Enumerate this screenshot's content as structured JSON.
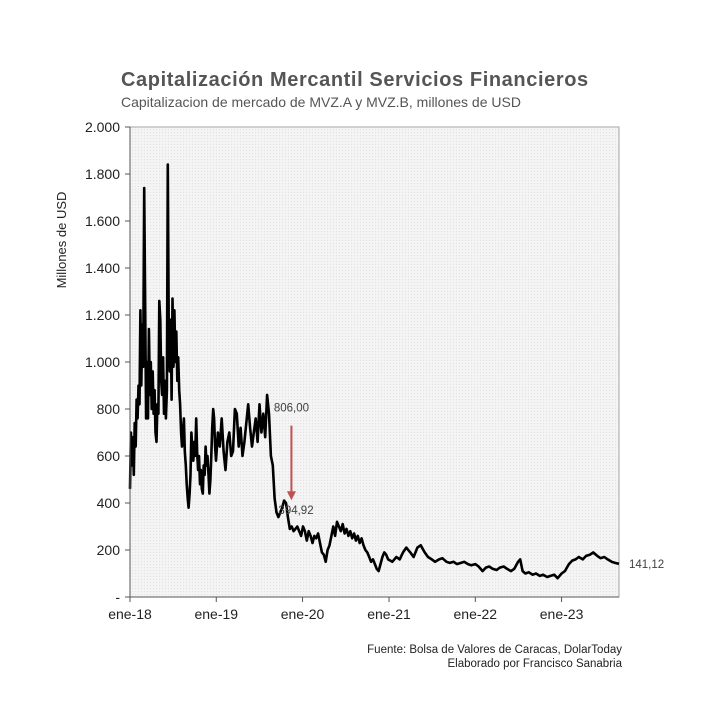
{
  "title": "Capitalización Mercantil Servicios Financieros",
  "subtitle": "Capitalizacion de mercado de MVZ.A  y MVZ.B,  millones de USD",
  "source_lines": [
    "Fuente: Bolsa de Valores de Caracas, DolarToday",
    "Elaborado por Francisco Sanabria"
  ],
  "colors": {
    "line": "#000000",
    "arrow": "#c0504d",
    "plot_bg": "#f2f2f2",
    "grid": "#dcdcdc"
  },
  "chart_data": {
    "type": "line",
    "ylabel": "Millones de USD",
    "xlabel": "",
    "ylim": [
      0,
      2000
    ],
    "xlim": [
      "2018-01-01",
      "2023-09-01"
    ],
    "grid": true,
    "y_ticks": [
      {
        "value": 0,
        "label": "-"
      },
      {
        "value": 200,
        "label": "200"
      },
      {
        "value": 400,
        "label": "400"
      },
      {
        "value": 600,
        "label": "600"
      },
      {
        "value": 800,
        "label": "800"
      },
      {
        "value": 1000,
        "label": "1.000"
      },
      {
        "value": 1200,
        "label": "1.200"
      },
      {
        "value": 1400,
        "label": "1.400"
      },
      {
        "value": 1600,
        "label": "1.600"
      },
      {
        "value": 1800,
        "label": "1.800"
      },
      {
        "value": 2000,
        "label": "2.000"
      }
    ],
    "x_ticks": [
      {
        "value": "2018-01-01",
        "label": "ene-18"
      },
      {
        "value": "2019-01-01",
        "label": "ene-19"
      },
      {
        "value": "2020-01-01",
        "label": "ene-20"
      },
      {
        "value": "2021-01-01",
        "label": "ene-21"
      },
      {
        "value": "2022-01-01",
        "label": "ene-22"
      },
      {
        "value": "2023-01-01",
        "label": "ene-23"
      }
    ],
    "series": [
      {
        "points": [
          [
            "2018-01-01",
            460
          ],
          [
            "2018-01-05",
            700
          ],
          [
            "2018-01-09",
            560
          ],
          [
            "2018-01-13",
            680
          ],
          [
            "2018-01-17",
            520
          ],
          [
            "2018-01-21",
            740
          ],
          [
            "2018-01-25",
            640
          ],
          [
            "2018-01-29",
            840
          ],
          [
            "2018-02-02",
            760
          ],
          [
            "2018-02-06",
            900
          ],
          [
            "2018-02-10",
            820
          ],
          [
            "2018-02-14",
            1220
          ],
          [
            "2018-02-18",
            900
          ],
          [
            "2018-02-22",
            1160
          ],
          [
            "2018-02-26",
            980
          ],
          [
            "2018-03-02",
            1740
          ],
          [
            "2018-03-06",
            1280
          ],
          [
            "2018-03-10",
            760
          ],
          [
            "2018-03-14",
            1000
          ],
          [
            "2018-03-18",
            760
          ],
          [
            "2018-03-22",
            1140
          ],
          [
            "2018-03-26",
            860
          ],
          [
            "2018-03-30",
            1000
          ],
          [
            "2018-04-03",
            800
          ],
          [
            "2018-04-07",
            960
          ],
          [
            "2018-04-11",
            780
          ],
          [
            "2018-04-15",
            880
          ],
          [
            "2018-04-19",
            700
          ],
          [
            "2018-04-23",
            660
          ],
          [
            "2018-04-27",
            820
          ],
          [
            "2018-05-01",
            780
          ],
          [
            "2018-05-05",
            1260
          ],
          [
            "2018-05-09",
            1180
          ],
          [
            "2018-05-13",
            920
          ],
          [
            "2018-05-17",
            860
          ],
          [
            "2018-05-21",
            1020
          ],
          [
            "2018-05-25",
            780
          ],
          [
            "2018-05-29",
            920
          ],
          [
            "2018-06-02",
            760
          ],
          [
            "2018-06-06",
            880
          ],
          [
            "2018-06-10",
            1840
          ],
          [
            "2018-06-14",
            1100
          ],
          [
            "2018-06-18",
            960
          ],
          [
            "2018-06-22",
            1180
          ],
          [
            "2018-06-26",
            840
          ],
          [
            "2018-06-30",
            1270
          ],
          [
            "2018-07-04",
            980
          ],
          [
            "2018-07-08",
            1220
          ],
          [
            "2018-07-12",
            1000
          ],
          [
            "2018-07-16",
            1130
          ],
          [
            "2018-07-20",
            920
          ],
          [
            "2018-07-24",
            1020
          ],
          [
            "2018-07-28",
            880
          ],
          [
            "2018-08-01",
            820
          ],
          [
            "2018-08-05",
            700
          ],
          [
            "2018-08-09",
            640
          ],
          [
            "2018-08-13",
            700
          ],
          [
            "2018-08-17",
            760
          ],
          [
            "2018-08-21",
            620
          ],
          [
            "2018-08-25",
            560
          ],
          [
            "2018-08-29",
            480
          ],
          [
            "2018-09-02",
            420
          ],
          [
            "2018-09-06",
            380
          ],
          [
            "2018-09-10",
            440
          ],
          [
            "2018-09-14",
            520
          ],
          [
            "2018-09-18",
            700
          ],
          [
            "2018-09-22",
            620
          ],
          [
            "2018-09-26",
            580
          ],
          [
            "2018-09-30",
            660
          ],
          [
            "2018-10-04",
            600
          ],
          [
            "2018-10-08",
            760
          ],
          [
            "2018-10-12",
            620
          ],
          [
            "2018-10-16",
            540
          ],
          [
            "2018-10-20",
            600
          ],
          [
            "2018-10-24",
            480
          ],
          [
            "2018-10-28",
            540
          ],
          [
            "2018-11-01",
            460
          ],
          [
            "2018-11-05",
            440
          ],
          [
            "2018-11-09",
            560
          ],
          [
            "2018-11-13",
            520
          ],
          [
            "2018-11-17",
            640
          ],
          [
            "2018-11-21",
            560
          ],
          [
            "2018-11-25",
            600
          ],
          [
            "2018-11-29",
            520
          ],
          [
            "2018-12-03",
            440
          ],
          [
            "2018-12-07",
            500
          ],
          [
            "2018-12-11",
            600
          ],
          [
            "2018-12-15",
            720
          ],
          [
            "2018-12-19",
            800
          ],
          [
            "2018-12-23",
            760
          ],
          [
            "2018-12-27",
            640
          ],
          [
            "2018-12-31",
            580
          ],
          [
            "2019-01-08",
            700
          ],
          [
            "2019-01-16",
            640
          ],
          [
            "2019-01-24",
            760
          ],
          [
            "2019-02-01",
            620
          ],
          [
            "2019-02-09",
            540
          ],
          [
            "2019-02-17",
            660
          ],
          [
            "2019-02-25",
            700
          ],
          [
            "2019-03-05",
            600
          ],
          [
            "2019-03-13",
            620
          ],
          [
            "2019-03-21",
            800
          ],
          [
            "2019-03-29",
            780
          ],
          [
            "2019-04-06",
            640
          ],
          [
            "2019-04-14",
            720
          ],
          [
            "2019-04-22",
            600
          ],
          [
            "2019-04-30",
            660
          ],
          [
            "2019-05-08",
            740
          ],
          [
            "2019-05-16",
            820
          ],
          [
            "2019-05-24",
            720
          ],
          [
            "2019-06-01",
            640
          ],
          [
            "2019-06-09",
            700
          ],
          [
            "2019-06-17",
            760
          ],
          [
            "2019-06-25",
            660
          ],
          [
            "2019-07-03",
            820
          ],
          [
            "2019-07-11",
            700
          ],
          [
            "2019-07-19",
            780
          ],
          [
            "2019-07-27",
            680
          ],
          [
            "2019-08-04",
            860
          ],
          [
            "2019-08-12",
            780
          ],
          [
            "2019-08-20",
            600
          ],
          [
            "2019-08-28",
            560
          ],
          [
            "2019-09-05",
            420
          ],
          [
            "2019-09-13",
            360
          ],
          [
            "2019-09-21",
            340
          ],
          [
            "2019-09-29",
            360
          ],
          [
            "2019-10-07",
            380
          ],
          [
            "2019-10-15",
            410
          ],
          [
            "2019-10-23",
            400
          ],
          [
            "2019-10-31",
            340
          ],
          [
            "2019-11-08",
            290
          ],
          [
            "2019-11-16",
            300
          ],
          [
            "2019-11-24",
            280
          ],
          [
            "2019-12-02",
            290
          ],
          [
            "2019-12-10",
            300
          ],
          [
            "2019-12-18",
            280
          ],
          [
            "2019-12-26",
            260
          ],
          [
            "2020-01-03",
            300
          ],
          [
            "2020-01-11",
            280
          ],
          [
            "2020-01-19",
            240
          ],
          [
            "2020-01-27",
            280
          ],
          [
            "2020-02-04",
            260
          ],
          [
            "2020-02-12",
            230
          ],
          [
            "2020-02-20",
            260
          ],
          [
            "2020-02-28",
            250
          ],
          [
            "2020-03-07",
            270
          ],
          [
            "2020-03-15",
            230
          ],
          [
            "2020-03-23",
            190
          ],
          [
            "2020-03-31",
            180
          ],
          [
            "2020-04-08",
            150
          ],
          [
            "2020-04-16",
            200
          ],
          [
            "2020-04-24",
            220
          ],
          [
            "2020-05-02",
            260
          ],
          [
            "2020-05-10",
            300
          ],
          [
            "2020-05-18",
            260
          ],
          [
            "2020-05-26",
            320
          ],
          [
            "2020-06-03",
            300
          ],
          [
            "2020-06-11",
            280
          ],
          [
            "2020-06-19",
            310
          ],
          [
            "2020-06-27",
            270
          ],
          [
            "2020-07-05",
            290
          ],
          [
            "2020-07-13",
            260
          ],
          [
            "2020-07-21",
            280
          ],
          [
            "2020-07-29",
            250
          ],
          [
            "2020-08-06",
            270
          ],
          [
            "2020-08-14",
            240
          ],
          [
            "2020-08-22",
            260
          ],
          [
            "2020-08-30",
            230
          ],
          [
            "2020-09-07",
            250
          ],
          [
            "2020-09-15",
            220
          ],
          [
            "2020-09-23",
            200
          ],
          [
            "2020-10-01",
            190
          ],
          [
            "2020-10-09",
            170
          ],
          [
            "2020-10-17",
            150
          ],
          [
            "2020-10-25",
            160
          ],
          [
            "2020-11-02",
            140
          ],
          [
            "2020-11-10",
            120
          ],
          [
            "2020-11-18",
            110
          ],
          [
            "2020-11-26",
            140
          ],
          [
            "2020-12-04",
            170
          ],
          [
            "2020-12-12",
            190
          ],
          [
            "2020-12-20",
            180
          ],
          [
            "2020-12-28",
            160
          ],
          [
            "2021-01-15",
            150
          ],
          [
            "2021-02-01",
            170
          ],
          [
            "2021-02-15",
            160
          ],
          [
            "2021-03-01",
            190
          ],
          [
            "2021-03-15",
            210
          ],
          [
            "2021-04-01",
            190
          ],
          [
            "2021-04-15",
            170
          ],
          [
            "2021-05-01",
            210
          ],
          [
            "2021-05-15",
            220
          ],
          [
            "2021-06-01",
            190
          ],
          [
            "2021-06-15",
            170
          ],
          [
            "2021-07-01",
            160
          ],
          [
            "2021-07-15",
            150
          ],
          [
            "2021-08-01",
            160
          ],
          [
            "2021-08-15",
            165
          ],
          [
            "2021-09-01",
            150
          ],
          [
            "2021-09-15",
            145
          ],
          [
            "2021-10-01",
            150
          ],
          [
            "2021-10-15",
            140
          ],
          [
            "2021-11-01",
            145
          ],
          [
            "2021-11-15",
            150
          ],
          [
            "2021-12-01",
            140
          ],
          [
            "2021-12-15",
            135
          ],
          [
            "2022-01-01",
            140
          ],
          [
            "2022-01-15",
            130
          ],
          [
            "2022-02-01",
            110
          ],
          [
            "2022-02-15",
            125
          ],
          [
            "2022-03-01",
            130
          ],
          [
            "2022-03-15",
            120
          ],
          [
            "2022-04-01",
            115
          ],
          [
            "2022-04-15",
            125
          ],
          [
            "2022-05-01",
            130
          ],
          [
            "2022-05-15",
            120
          ],
          [
            "2022-06-01",
            110
          ],
          [
            "2022-06-15",
            120
          ],
          [
            "2022-07-01",
            150
          ],
          [
            "2022-07-10",
            160
          ],
          [
            "2022-07-20",
            110
          ],
          [
            "2022-08-01",
            100
          ],
          [
            "2022-08-15",
            105
          ],
          [
            "2022-09-01",
            95
          ],
          [
            "2022-09-15",
            100
          ],
          [
            "2022-10-01",
            90
          ],
          [
            "2022-10-15",
            95
          ],
          [
            "2022-11-01",
            85
          ],
          [
            "2022-11-15",
            90
          ],
          [
            "2022-12-01",
            95
          ],
          [
            "2022-12-15",
            80
          ],
          [
            "2023-01-01",
            100
          ],
          [
            "2023-01-15",
            110
          ],
          [
            "2023-02-01",
            140
          ],
          [
            "2023-02-15",
            155
          ],
          [
            "2023-03-01",
            160
          ],
          [
            "2023-03-15",
            170
          ],
          [
            "2023-04-01",
            160
          ],
          [
            "2023-04-15",
            175
          ],
          [
            "2023-05-01",
            180
          ],
          [
            "2023-05-15",
            190
          ],
          [
            "2023-06-01",
            175
          ],
          [
            "2023-06-15",
            165
          ],
          [
            "2023-07-01",
            170
          ],
          [
            "2023-07-15",
            160
          ],
          [
            "2023-08-01",
            150
          ],
          [
            "2023-08-15",
            145
          ],
          [
            "2023-09-01",
            141.12
          ]
        ]
      }
    ],
    "annotations": {
      "arrow": {
        "date": "2019-11-15",
        "from": 806.0,
        "to": 394.92,
        "from_label": "806,00",
        "to_label": "394,92"
      },
      "end_value_label": "141,12"
    }
  }
}
